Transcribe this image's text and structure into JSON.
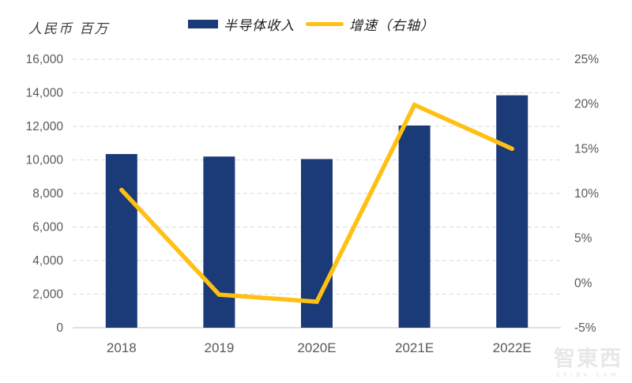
{
  "unit_label": "人民币 百万",
  "legend": {
    "bar_label": "半导体收入",
    "line_label": "增速（右轴）"
  },
  "watermark": {
    "logo": "智東西",
    "site": "zhidx.com"
  },
  "colors": {
    "bar": "#1a3a78",
    "line": "#ffc013",
    "gridline": "#d9d9d9",
    "axis_line": "#bfbfbf",
    "tick_text": "#595959"
  },
  "chart_data": {
    "type": "bar",
    "subtype": "bar+line combo, dual axis",
    "title": "人民币 百万",
    "categories": [
      "2018",
      "2019",
      "2020E",
      "2021E",
      "2022E"
    ],
    "series": [
      {
        "name": "半导体收入",
        "type": "bar",
        "axis": "left",
        "color": "#1a3a78",
        "values": [
          10350,
          10200,
          10050,
          12050,
          13850
        ]
      },
      {
        "name": "增速（右轴）",
        "type": "line",
        "axis": "right",
        "color": "#ffc013",
        "values": [
          10.4,
          -1.3,
          -2.1,
          19.9,
          15.0
        ]
      }
    ],
    "left_axis": {
      "min": 0,
      "max": 16000,
      "step": 2000,
      "tick_labels": [
        "0",
        "2,000",
        "4,000",
        "6,000",
        "8,000",
        "10,000",
        "12,000",
        "14,000",
        "16,000"
      ]
    },
    "right_axis": {
      "min": -5,
      "max": 25,
      "step": 5,
      "tick_labels": [
        "-5%",
        "0%",
        "5%",
        "10%",
        "15%",
        "20%",
        "25%"
      ]
    },
    "grid": "horizontal dashed",
    "legend_position": "top-center"
  }
}
